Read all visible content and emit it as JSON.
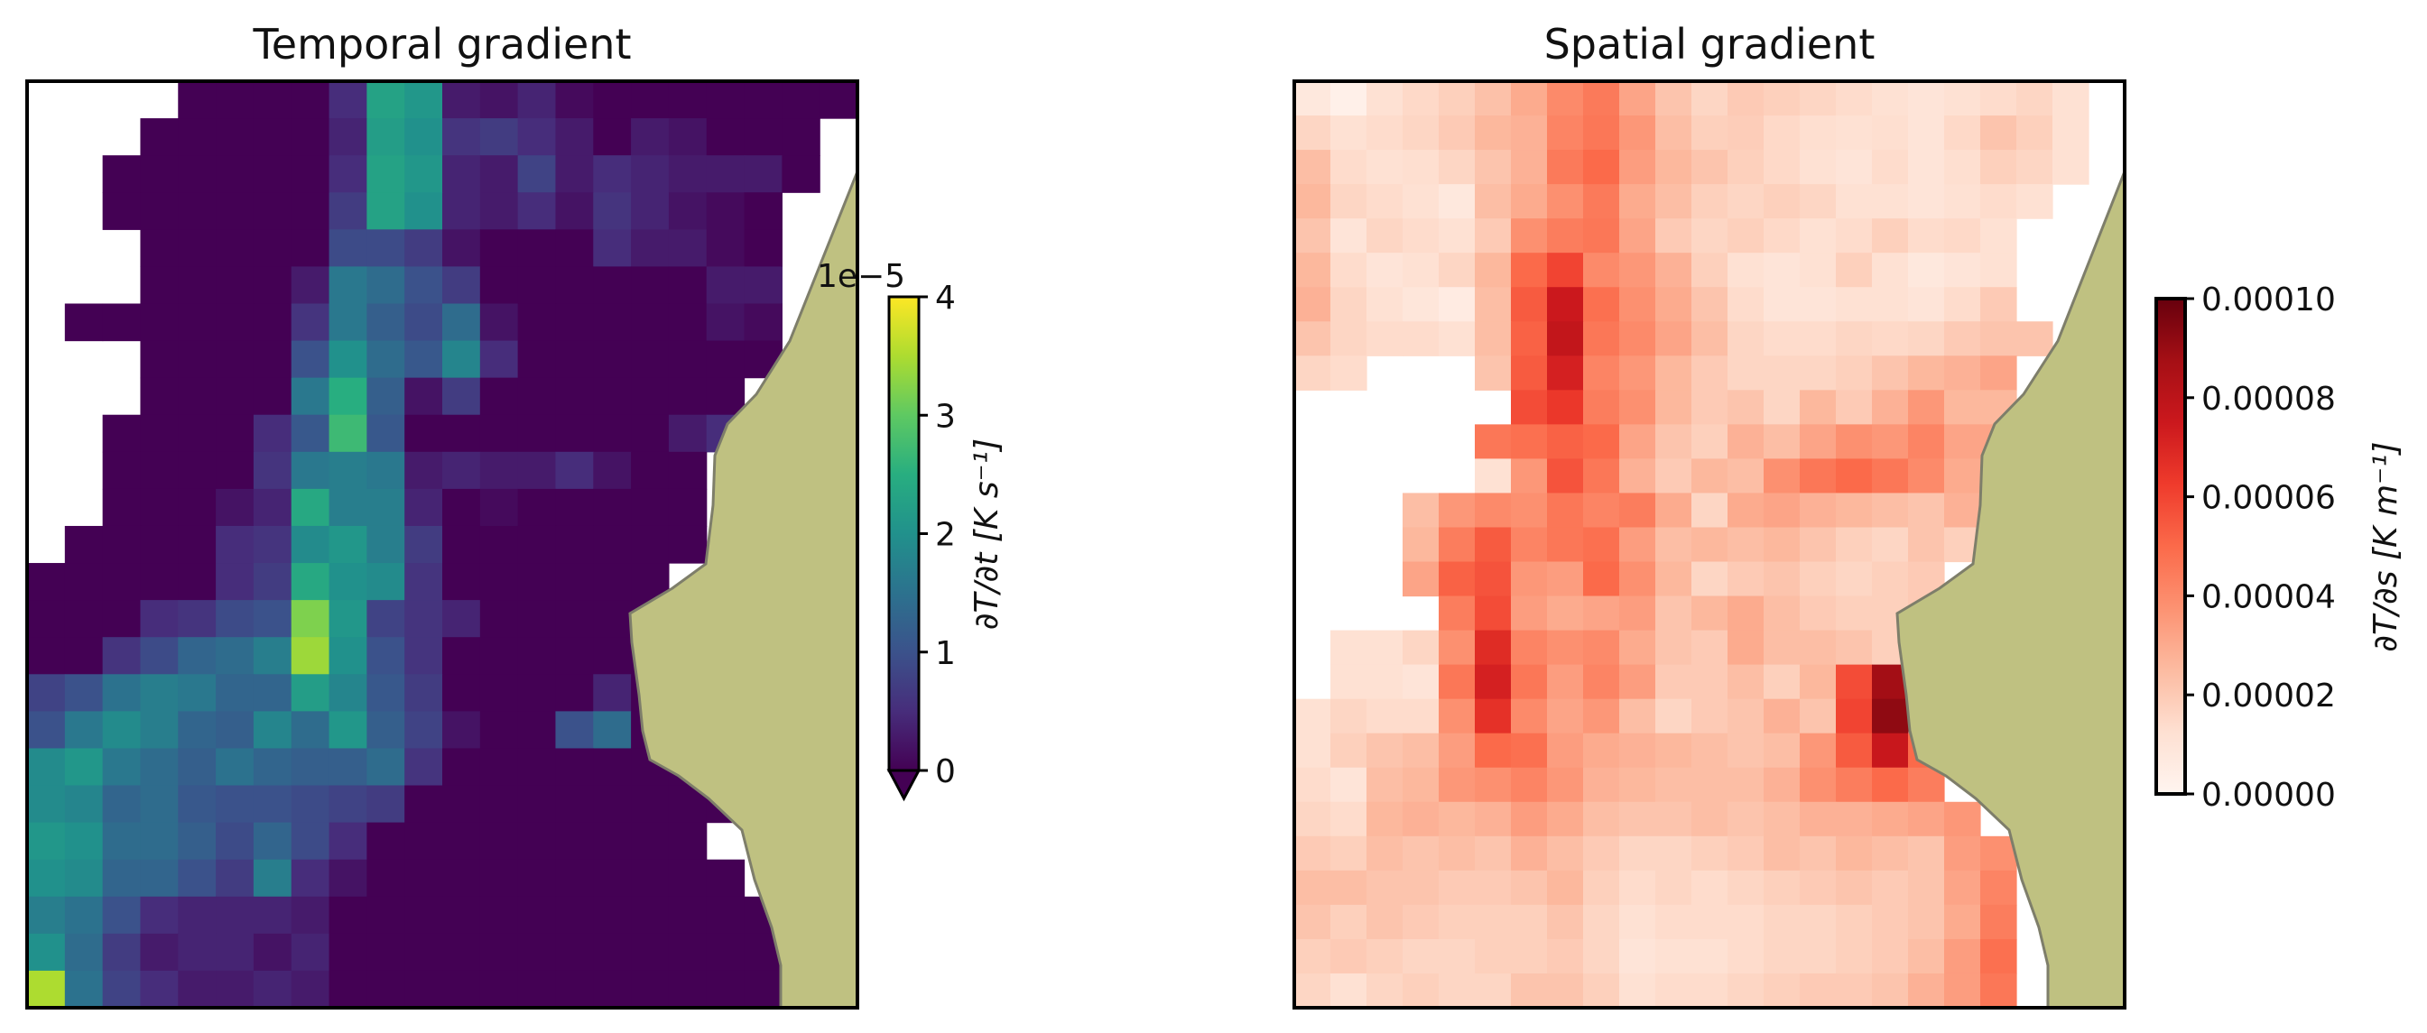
{
  "chart_data": [
    {
      "type": "heatmap",
      "title": "Temporal gradient",
      "cmap": "viridis",
      "vmin": 0,
      "vmax": 4e-05,
      "colorbar": {
        "label": "∂T/∂t [K s⁻¹]",
        "offset_text": "1e−5",
        "ticks": [
          "0",
          "1",
          "2",
          "3",
          "4"
        ],
        "extend": "min"
      },
      "grid_values_scaled_1e-5": [
        [
          null,
          null,
          null,
          null,
          0,
          0,
          0,
          0,
          0.5,
          2.3,
          2.1,
          0.3,
          0.2,
          0.4,
          0.1,
          0,
          0,
          0,
          0,
          0,
          0,
          0
        ],
        [
          null,
          null,
          null,
          0,
          0,
          0,
          0,
          0,
          0.4,
          2.2,
          2.0,
          0.6,
          0.7,
          0.5,
          0.3,
          0,
          0.3,
          0.2,
          0,
          0,
          0,
          null
        ],
        [
          null,
          null,
          0,
          0,
          0,
          0,
          0,
          0,
          0.5,
          2.3,
          2.1,
          0.4,
          0.3,
          0.8,
          0.3,
          0.5,
          0.4,
          0.3,
          0.3,
          0.3,
          0,
          null
        ],
        [
          null,
          null,
          0,
          0,
          0,
          0,
          0,
          0,
          0.7,
          2.3,
          2.0,
          0.4,
          0.3,
          0.5,
          0.2,
          0.6,
          0.4,
          0.2,
          0.1,
          0,
          null,
          null
        ],
        [
          null,
          null,
          null,
          0,
          0,
          0,
          0,
          0,
          0.9,
          0.9,
          0.7,
          0.2,
          0,
          0,
          0,
          0.5,
          0.3,
          0.3,
          0.1,
          0,
          null,
          null
        ],
        [
          null,
          null,
          null,
          0,
          0,
          0,
          0,
          0.3,
          1.6,
          1.4,
          1.0,
          0.7,
          0,
          0,
          0,
          0,
          0,
          0,
          0.3,
          0.3,
          null,
          null
        ],
        [
          null,
          0,
          0,
          0,
          0,
          0,
          0,
          0.6,
          1.6,
          1.2,
          0.9,
          1.4,
          0.2,
          0,
          0,
          0,
          0,
          0,
          0.2,
          0.1,
          null,
          null
        ],
        [
          null,
          null,
          null,
          0,
          0,
          0,
          0,
          1.0,
          2.0,
          1.4,
          1.1,
          1.8,
          0.5,
          0,
          0,
          0,
          0,
          0,
          0,
          0,
          null,
          null
        ],
        [
          null,
          null,
          null,
          0,
          0,
          0,
          0,
          1.6,
          2.5,
          1.2,
          0.2,
          0.7,
          0,
          0,
          0,
          0,
          0,
          0,
          0,
          null,
          null,
          null
        ],
        [
          null,
          null,
          0,
          0,
          0,
          0,
          0.5,
          1.1,
          2.7,
          1.1,
          0,
          0,
          0,
          0,
          0,
          0,
          0,
          0.3,
          0.5,
          null,
          null,
          null
        ],
        [
          null,
          null,
          0,
          0,
          0,
          0,
          0.6,
          1.6,
          1.7,
          1.6,
          0.3,
          0.4,
          0.3,
          0.3,
          0.5,
          0.2,
          0,
          0,
          null,
          null,
          null,
          null
        ],
        [
          null,
          null,
          0,
          0,
          0,
          0.2,
          0.4,
          2.4,
          1.7,
          1.7,
          0.4,
          0,
          0.1,
          0,
          0,
          0,
          0,
          0,
          null,
          null,
          null,
          null
        ],
        [
          null,
          0,
          0,
          0,
          0,
          0.5,
          0.6,
          1.9,
          2.1,
          1.7,
          0.7,
          0,
          0,
          0,
          0,
          0,
          0,
          0,
          null,
          null,
          null,
          null
        ],
        [
          0,
          0,
          0,
          0,
          0,
          0.5,
          0.7,
          2.4,
          2.0,
          1.9,
          0.6,
          0,
          0,
          0,
          0,
          0,
          0,
          null,
          null,
          null,
          null,
          null
        ],
        [
          0,
          0,
          0,
          0.5,
          0.6,
          0.9,
          1.0,
          3.2,
          2.1,
          0.8,
          0.6,
          0.4,
          0,
          0,
          0,
          0,
          0,
          null,
          null,
          null,
          null,
          null
        ],
        [
          0,
          0,
          0.6,
          0.9,
          1.3,
          1.4,
          1.7,
          3.4,
          2.0,
          1.0,
          0.6,
          0,
          0,
          0,
          0,
          0,
          0,
          0,
          null,
          null,
          null,
          null
        ],
        [
          0.8,
          1.0,
          1.5,
          1.7,
          1.6,
          1.3,
          1.3,
          2.2,
          1.8,
          1.1,
          0.7,
          0,
          0,
          0,
          0,
          0.4,
          0,
          0,
          null,
          null,
          null,
          null
        ],
        [
          1.0,
          1.6,
          1.9,
          1.7,
          1.3,
          1.2,
          1.8,
          1.4,
          2.1,
          1.2,
          0.8,
          0.2,
          0,
          0,
          1.0,
          1.4,
          0,
          0,
          null,
          null,
          null,
          null
        ],
        [
          1.9,
          2.1,
          1.6,
          1.4,
          1.2,
          1.5,
          1.3,
          1.2,
          1.2,
          1.4,
          0.6,
          0,
          0,
          0,
          0,
          0,
          0,
          0,
          0,
          null,
          null,
          null
        ],
        [
          1.9,
          1.8,
          1.3,
          1.4,
          1.1,
          1.0,
          1.0,
          0.9,
          0.8,
          0.7,
          0,
          0,
          0,
          0,
          0,
          0,
          0,
          0,
          0,
          null,
          null,
          null
        ],
        [
          2.1,
          2.0,
          1.4,
          1.4,
          1.2,
          0.9,
          1.3,
          0.9,
          0.5,
          0,
          0,
          0,
          0,
          0,
          0,
          0,
          0,
          0,
          null,
          null,
          null,
          null
        ],
        [
          2.0,
          1.9,
          1.3,
          1.3,
          1.0,
          0.7,
          1.7,
          0.5,
          0.2,
          0,
          0,
          0,
          0,
          0,
          0,
          0,
          0,
          0,
          0,
          null,
          null,
          null
        ],
        [
          1.7,
          1.5,
          1.0,
          0.5,
          0.4,
          0.4,
          0.4,
          0.3,
          0,
          0,
          0,
          0,
          0,
          0,
          0,
          0,
          0,
          0,
          0,
          0,
          null,
          null
        ],
        [
          2.0,
          1.4,
          0.7,
          0.3,
          0.4,
          0.4,
          0.2,
          0.4,
          0,
          0,
          0,
          0,
          0,
          0,
          0,
          0,
          0,
          0,
          0,
          0,
          null,
          null
        ],
        [
          3.5,
          1.5,
          0.8,
          0.5,
          0.3,
          0.3,
          0.4,
          0.3,
          0,
          0,
          0,
          0,
          0,
          0,
          0,
          0,
          0,
          0,
          0,
          0,
          null,
          null
        ]
      ]
    },
    {
      "type": "heatmap",
      "title": "Spatial gradient",
      "cmap": "Reds",
      "vmin": 0,
      "vmax": 0.0001,
      "colorbar": {
        "label": "∂T/∂s [K m⁻¹]",
        "ticks": [
          "0.00000",
          "0.00002",
          "0.00004",
          "0.00006",
          "0.00008",
          "0.00010"
        ],
        "extend": "neither"
      },
      "grid_values_scaled_1e-5": [
        [
          0.8,
          0.3,
          1.2,
          1.5,
          1.8,
          2.3,
          3.0,
          4.0,
          4.5,
          3.2,
          2.2,
          1.6,
          2.0,
          1.8,
          1.6,
          1.4,
          1.2,
          1.0,
          1.2,
          1.4,
          1.6,
          1.2,
          null
        ],
        [
          1.6,
          1.2,
          1.4,
          1.6,
          2.0,
          2.6,
          2.8,
          4.2,
          4.6,
          3.6,
          2.4,
          1.8,
          1.9,
          1.5,
          1.3,
          1.2,
          1.3,
          1.0,
          1.5,
          2.2,
          1.8,
          1.2,
          null
        ],
        [
          2.4,
          1.4,
          1.2,
          1.3,
          1.6,
          2.2,
          2.8,
          4.5,
          5.0,
          3.4,
          2.6,
          2.2,
          1.8,
          1.5,
          1.2,
          1.0,
          1.4,
          1.0,
          1.3,
          1.8,
          1.6,
          1.2,
          null
        ],
        [
          2.6,
          1.6,
          1.4,
          1.2,
          0.8,
          2.4,
          3.0,
          3.8,
          4.5,
          3.0,
          2.4,
          1.8,
          1.6,
          1.8,
          1.6,
          1.2,
          1.2,
          1.0,
          1.2,
          1.4,
          1.2,
          null,
          null
        ],
        [
          2.2,
          1.0,
          1.6,
          1.4,
          1.2,
          2.0,
          3.8,
          4.4,
          4.6,
          3.2,
          2.0,
          1.6,
          1.8,
          1.5,
          1.2,
          1.4,
          1.8,
          1.4,
          1.5,
          1.2,
          null,
          null,
          null
        ],
        [
          2.6,
          1.4,
          1.0,
          1.2,
          1.6,
          2.6,
          5.0,
          6.0,
          4.0,
          3.6,
          2.8,
          1.8,
          1.2,
          1.0,
          1.2,
          1.8,
          1.2,
          0.8,
          1.0,
          1.2,
          null,
          null,
          null
        ],
        [
          2.8,
          1.6,
          1.2,
          0.9,
          0.6,
          2.4,
          5.4,
          7.5,
          4.8,
          3.8,
          3.0,
          2.2,
          1.4,
          1.0,
          1.0,
          1.2,
          1.2,
          1.0,
          1.4,
          2.0,
          null,
          null,
          null
        ],
        [
          2.2,
          1.6,
          1.4,
          1.4,
          1.2,
          2.4,
          5.2,
          7.8,
          4.6,
          4.0,
          3.2,
          2.4,
          1.6,
          1.4,
          1.4,
          1.6,
          1.5,
          1.6,
          2.0,
          2.2,
          2.2,
          null,
          null
        ],
        [
          1.6,
          1.4,
          null,
          null,
          null,
          2.2,
          5.4,
          7.2,
          4.2,
          3.6,
          2.6,
          2.0,
          1.6,
          1.6,
          1.6,
          1.8,
          2.2,
          2.6,
          2.8,
          3.2,
          null,
          null,
          null
        ],
        [
          null,
          null,
          null,
          null,
          null,
          null,
          5.8,
          6.4,
          4.4,
          3.8,
          2.6,
          2.0,
          2.2,
          1.6,
          2.6,
          2.0,
          2.8,
          3.6,
          2.6,
          2.6,
          null,
          null,
          null
        ],
        [
          null,
          null,
          null,
          null,
          null,
          4.6,
          4.8,
          5.2,
          5.0,
          3.2,
          2.2,
          1.8,
          2.8,
          2.4,
          3.2,
          3.8,
          3.6,
          4.2,
          3.2,
          3.2,
          null,
          null,
          null
        ],
        [
          null,
          null,
          null,
          null,
          null,
          1.2,
          3.6,
          5.6,
          4.6,
          2.8,
          2.0,
          2.6,
          2.4,
          3.8,
          4.6,
          5.0,
          4.6,
          4.0,
          3.0,
          null,
          null,
          null,
          null
        ],
        [
          null,
          null,
          null,
          2.4,
          3.6,
          4.0,
          3.8,
          4.6,
          4.2,
          4.4,
          3.0,
          1.6,
          3.0,
          3.2,
          2.8,
          2.6,
          2.4,
          2.2,
          2.8,
          null,
          null,
          null,
          null
        ],
        [
          null,
          null,
          null,
          2.6,
          4.4,
          5.4,
          4.2,
          4.6,
          4.8,
          3.4,
          2.4,
          2.6,
          2.4,
          2.6,
          2.2,
          1.8,
          1.6,
          2.2,
          1.8,
          null,
          null,
          null,
          null
        ],
        [
          null,
          null,
          null,
          3.2,
          5.2,
          5.6,
          3.6,
          3.4,
          5.0,
          3.8,
          2.6,
          1.6,
          2.0,
          2.2,
          1.8,
          1.6,
          1.8,
          2.0,
          null,
          null,
          null,
          null,
          null
        ],
        [
          null,
          null,
          null,
          null,
          4.4,
          5.8,
          3.4,
          3.0,
          3.2,
          3.4,
          2.2,
          2.6,
          3.0,
          2.4,
          2.0,
          1.8,
          1.8,
          2.0,
          null,
          null,
          null,
          null,
          null
        ],
        [
          null,
          1.2,
          1.2,
          1.6,
          3.8,
          6.8,
          4.2,
          3.8,
          4.0,
          3.0,
          2.2,
          2.0,
          3.0,
          2.4,
          2.4,
          2.2,
          1.8,
          null,
          null,
          null,
          null,
          null,
          null
        ],
        [
          null,
          1.2,
          1.2,
          1.0,
          4.6,
          7.2,
          4.6,
          3.4,
          4.2,
          3.4,
          2.0,
          2.0,
          2.4,
          1.8,
          2.6,
          5.8,
          8.8,
          null,
          null,
          null,
          null,
          null,
          null
        ],
        [
          1.2,
          1.6,
          1.4,
          1.4,
          3.8,
          6.6,
          4.0,
          3.2,
          3.6,
          2.4,
          1.6,
          2.0,
          2.2,
          2.8,
          2.2,
          6.0,
          9.2,
          null,
          null,
          null,
          null,
          null,
          null
        ],
        [
          1.2,
          1.8,
          2.2,
          2.4,
          3.4,
          5.0,
          4.8,
          3.4,
          3.0,
          2.8,
          2.6,
          2.4,
          2.2,
          2.4,
          3.6,
          5.4,
          7.6,
          5.0,
          null,
          null,
          null,
          null,
          null
        ],
        [
          1.4,
          1.0,
          2.4,
          2.6,
          3.6,
          3.8,
          4.2,
          3.6,
          2.8,
          2.6,
          2.4,
          2.4,
          2.4,
          2.8,
          3.8,
          4.4,
          5.0,
          4.4,
          null,
          null,
          null,
          null,
          null
        ],
        [
          1.6,
          1.4,
          2.6,
          2.8,
          2.6,
          2.8,
          3.4,
          3.0,
          2.4,
          2.2,
          2.2,
          2.4,
          2.2,
          2.4,
          2.8,
          2.8,
          3.0,
          3.2,
          3.6,
          null,
          null,
          null,
          null
        ],
        [
          2.0,
          1.8,
          2.4,
          2.2,
          2.4,
          2.2,
          2.8,
          2.4,
          2.0,
          1.6,
          1.6,
          1.8,
          2.0,
          2.4,
          2.2,
          2.6,
          2.4,
          2.2,
          3.4,
          3.8,
          null,
          null,
          null
        ],
        [
          2.4,
          2.4,
          2.2,
          2.2,
          2.0,
          2.0,
          2.2,
          2.6,
          1.8,
          1.4,
          1.6,
          1.4,
          1.6,
          1.8,
          2.0,
          2.2,
          2.0,
          2.2,
          3.2,
          4.2,
          null,
          null,
          null
        ],
        [
          2.2,
          1.8,
          2.2,
          2.0,
          1.8,
          1.8,
          1.8,
          2.2,
          1.6,
          1.2,
          1.4,
          1.4,
          1.4,
          1.6,
          1.6,
          1.8,
          2.0,
          2.2,
          3.0,
          4.4,
          null,
          null,
          null
        ],
        [
          1.8,
          2.0,
          1.8,
          1.6,
          1.6,
          1.8,
          1.8,
          2.0,
          1.6,
          1.0,
          1.2,
          1.2,
          1.4,
          1.6,
          1.6,
          1.8,
          2.0,
          2.4,
          3.4,
          4.8,
          null,
          null,
          null
        ],
        [
          1.6,
          1.2,
          1.6,
          1.8,
          1.6,
          1.6,
          2.2,
          2.2,
          1.8,
          1.2,
          1.4,
          1.4,
          1.6,
          1.8,
          2.0,
          2.0,
          2.2,
          2.8,
          3.4,
          4.6,
          null,
          null,
          null
        ]
      ]
    }
  ]
}
